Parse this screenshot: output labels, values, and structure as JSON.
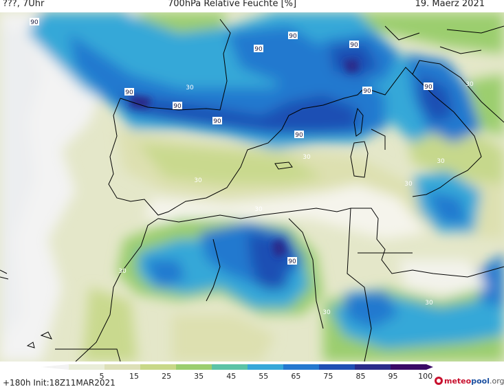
{
  "header": {
    "left_text": "???, 7Uhr",
    "title": "700hPa Relative Feuchte [%]",
    "date": "19. Maerz 2021"
  },
  "footer": {
    "init_text": "+180h  Init:18Z11MAR2021",
    "logo_prefix": "meteo",
    "logo_mid": "pool",
    "logo_suffix": ".org"
  },
  "colorbar": {
    "labels": [
      "5",
      "15",
      "25",
      "35",
      "45",
      "55",
      "65",
      "75",
      "85",
      "95",
      "100"
    ],
    "colors": [
      "#f2f2f2",
      "#e9edd8",
      "#dde0b8",
      "#c8d888",
      "#9bce6e",
      "#5bc3a6",
      "#36a8d8",
      "#2479cf",
      "#1f4fb4",
      "#2a2c8a",
      "#3a0a66"
    ]
  },
  "contour_labels": [
    "90",
    "90",
    "90",
    "90",
    "90",
    "90",
    "90",
    "90",
    "90",
    "90",
    "90",
    "30",
    "30",
    "30",
    "30",
    "30",
    "30",
    "30",
    "30",
    "30",
    "30"
  ],
  "label_colors": {
    "high": "#ffffff",
    "low": "#ffffff"
  }
}
